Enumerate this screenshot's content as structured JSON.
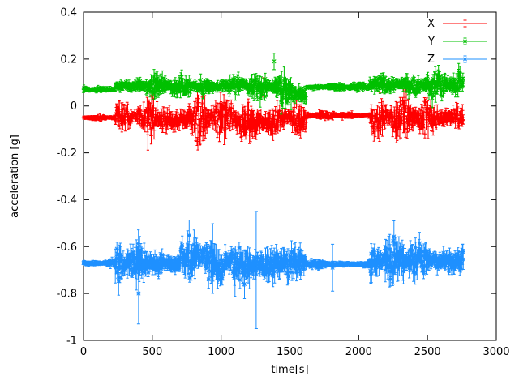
{
  "figure": {
    "background": "#ffffff",
    "axis_color": "#000000"
  },
  "chart_data": {
    "type": "scatter",
    "style": "points-with-error-bars",
    "title": "",
    "xlabel": "time[s]",
    "ylabel": "acceleration [g]",
    "xlim": [
      0,
      3000
    ],
    "ylim": [
      -1,
      0.4
    ],
    "xticks": [
      0,
      500,
      1000,
      1500,
      2000,
      2500,
      3000
    ],
    "yticks": [
      -1,
      -0.8,
      -0.6,
      -0.4,
      -0.2,
      0,
      0.2,
      0.4
    ],
    "grid": false,
    "legend_position": "top-right-inside",
    "time_range": [
      0,
      2760
    ],
    "sample_interval_s": 3,
    "series": [
      {
        "name": "X",
        "color": "#ff0000",
        "marker": "plus",
        "baseline": -0.05,
        "segments": [
          {
            "t": [
              0,
              230
            ],
            "base": -0.05,
            "noise": 0.004,
            "err": 0.012
          },
          {
            "t": [
              230,
              460
            ],
            "base": -0.04,
            "noise": 0.02,
            "err": 0.03
          },
          {
            "t": [
              460,
              900
            ],
            "base": -0.06,
            "noise": 0.035,
            "err": 0.05
          },
          {
            "t": [
              900,
              1100
            ],
            "base": -0.05,
            "noise": 0.03,
            "err": 0.04
          },
          {
            "t": [
              1100,
              1430
            ],
            "base": -0.07,
            "noise": 0.04,
            "err": 0.055
          },
          {
            "t": [
              1430,
              1620
            ],
            "base": -0.05,
            "noise": 0.025,
            "err": 0.035
          },
          {
            "t": [
              1620,
              2080
            ],
            "base": -0.04,
            "noise": 0.006,
            "err": 0.012
          },
          {
            "t": [
              2080,
              2760
            ],
            "base": -0.05,
            "noise": 0.03,
            "err": 0.045
          }
        ],
        "spikes": [
          {
            "t": 1310,
            "y": 0.08,
            "err": 0.04
          }
        ]
      },
      {
        "name": "Y",
        "color": "#00c000",
        "marker": "cross",
        "baseline": 0.08,
        "segments": [
          {
            "t": [
              0,
              230
            ],
            "base": 0.07,
            "noise": 0.004,
            "err": 0.01
          },
          {
            "t": [
              230,
              1430
            ],
            "base": 0.085,
            "noise": 0.018,
            "err": 0.028
          },
          {
            "t": [
              1430,
              1620
            ],
            "base": 0.05,
            "noise": 0.03,
            "err": 0.04
          },
          {
            "t": [
              1620,
              2080
            ],
            "base": 0.08,
            "noise": 0.005,
            "err": 0.01
          },
          {
            "t": [
              2080,
              2760
            ],
            "base": 0.09,
            "noise": 0.022,
            "err": 0.03
          }
        ],
        "spikes": [
          {
            "t": 1385,
            "y": 0.19,
            "err": 0.035
          }
        ]
      },
      {
        "name": "Z",
        "color": "#1e90ff",
        "marker": "star",
        "baseline": -0.67,
        "segments": [
          {
            "t": [
              0,
              230
            ],
            "base": -0.672,
            "noise": 0.004,
            "err": 0.012
          },
          {
            "t": [
              230,
              700
            ],
            "base": -0.67,
            "noise": 0.03,
            "err": 0.05
          },
          {
            "t": [
              700,
              900
            ],
            "base": -0.64,
            "noise": 0.035,
            "err": 0.055
          },
          {
            "t": [
              900,
              1150
            ],
            "base": -0.67,
            "noise": 0.03,
            "err": 0.05
          },
          {
            "t": [
              1150,
              1450
            ],
            "base": -0.68,
            "noise": 0.045,
            "err": 0.07
          },
          {
            "t": [
              1450,
              1620
            ],
            "base": -0.67,
            "noise": 0.03,
            "err": 0.05
          },
          {
            "t": [
              1620,
              2080
            ],
            "base": -0.675,
            "noise": 0.006,
            "err": 0.012
          },
          {
            "t": [
              2080,
              2760
            ],
            "base": -0.66,
            "noise": 0.035,
            "err": 0.05
          }
        ],
        "spikes": [
          {
            "t": 400,
            "y": -0.8,
            "err": 0.13
          },
          {
            "t": 1255,
            "y": -0.7,
            "err": 0.25
          },
          {
            "t": 1810,
            "y": -0.69,
            "err": 0.1
          }
        ]
      }
    ]
  },
  "legend": {
    "entries": [
      {
        "label": "X"
      },
      {
        "label": "Y"
      },
      {
        "label": "Z"
      }
    ]
  }
}
